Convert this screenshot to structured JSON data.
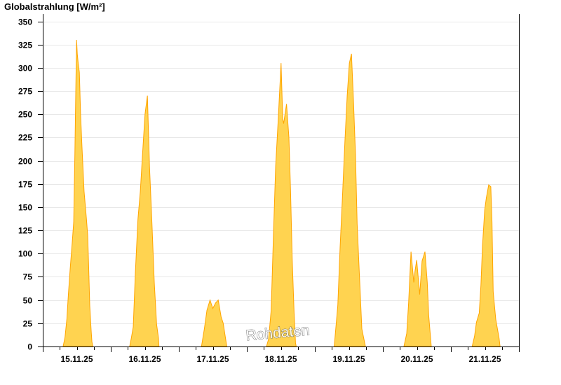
{
  "chart_data": {
    "type": "area",
    "title": "Globalstrahlung [W/m²]",
    "xlabel": "",
    "ylabel": "Globalstrahlung [W/m²]",
    "ylim": [
      0,
      350
    ],
    "yticks": [
      0,
      25,
      50,
      75,
      100,
      125,
      150,
      175,
      200,
      225,
      250,
      275,
      300,
      325,
      350
    ],
    "xrange": [
      "15.11.25 00:00",
      "22.11.25 00:00"
    ],
    "x_tick_interval_hours": 6,
    "grid": "horizontal",
    "colors": {
      "fill": "#ffd350",
      "line": "#ffa500",
      "grid": "#e8e8e8",
      "axis": "#000000"
    },
    "watermark": "Rohdaten",
    "days": [
      {
        "label": "15.11.25",
        "points": [
          [
            "07:10",
            0
          ],
          [
            "07:50",
            10
          ],
          [
            "08:30",
            30
          ],
          [
            "09:00",
            55
          ],
          [
            "09:40",
            84
          ],
          [
            "10:20",
            110
          ],
          [
            "10:55",
            134
          ],
          [
            "11:20",
            209
          ],
          [
            "11:40",
            282
          ],
          [
            "11:55",
            330
          ],
          [
            "12:10",
            315
          ],
          [
            "12:30",
            305
          ],
          [
            "12:55",
            295
          ],
          [
            "13:20",
            250
          ],
          [
            "13:50",
            215
          ],
          [
            "14:35",
            167
          ],
          [
            "15:25",
            137
          ],
          [
            "15:50",
            120
          ],
          [
            "16:10",
            90
          ],
          [
            "16:35",
            44
          ],
          [
            "17:05",
            17
          ],
          [
            "17:20",
            5
          ],
          [
            "17:40",
            0
          ]
        ]
      },
      {
        "label": "16.11.25",
        "points": [
          [
            "06:40",
            0
          ],
          [
            "07:10",
            8
          ],
          [
            "07:55",
            21
          ],
          [
            "08:40",
            79
          ],
          [
            "09:35",
            137
          ],
          [
            "10:25",
            167
          ],
          [
            "11:10",
            205
          ],
          [
            "12:05",
            250
          ],
          [
            "12:55",
            270
          ],
          [
            "13:40",
            194
          ],
          [
            "14:30",
            134
          ],
          [
            "15:20",
            69
          ],
          [
            "16:10",
            24
          ],
          [
            "16:50",
            9
          ],
          [
            "17:00",
            0
          ]
        ]
      },
      {
        "label": "17.11.25",
        "points": [
          [
            "08:00",
            0
          ],
          [
            "09:00",
            19
          ],
          [
            "09:55",
            39
          ],
          [
            "11:00",
            50
          ],
          [
            "12:00",
            41
          ],
          [
            "13:00",
            47
          ],
          [
            "13:55",
            50
          ],
          [
            "14:55",
            32
          ],
          [
            "15:40",
            25
          ],
          [
            "16:55",
            0
          ]
        ]
      },
      {
        "label": "18.11.25",
        "points": [
          [
            "06:55",
            0
          ],
          [
            "07:40",
            8
          ],
          [
            "08:35",
            39
          ],
          [
            "09:25",
            124
          ],
          [
            "10:10",
            194
          ],
          [
            "11:05",
            245
          ],
          [
            "12:05",
            305
          ],
          [
            "12:40",
            245
          ],
          [
            "13:00",
            240
          ],
          [
            "14:00",
            261
          ],
          [
            "14:50",
            225
          ],
          [
            "15:25",
            169
          ],
          [
            "16:00",
            94
          ],
          [
            "16:40",
            36
          ],
          [
            "17:10",
            4
          ],
          [
            "17:25",
            0
          ]
        ]
      },
      {
        "label": "19.11.25",
        "points": [
          [
            "06:50",
            0
          ],
          [
            "08:05",
            44
          ],
          [
            "08:55",
            107
          ],
          [
            "09:40",
            157
          ],
          [
            "10:35",
            220
          ],
          [
            "11:25",
            270
          ],
          [
            "12:10",
            305
          ],
          [
            "12:55",
            315
          ],
          [
            "13:40",
            262
          ],
          [
            "14:20",
            207
          ],
          [
            "14:55",
            132
          ],
          [
            "15:50",
            69
          ],
          [
            "16:35",
            19
          ],
          [
            "17:50",
            0
          ]
        ]
      },
      {
        "label": "20.11.25",
        "points": [
          [
            "07:25",
            0
          ],
          [
            "08:25",
            14
          ],
          [
            "09:05",
            47
          ],
          [
            "09:55",
            102
          ],
          [
            "10:55",
            69
          ],
          [
            "11:20",
            81
          ],
          [
            "11:55",
            93
          ],
          [
            "13:00",
            56
          ],
          [
            "13:50",
            92
          ],
          [
            "14:50",
            102
          ],
          [
            "15:40",
            69
          ],
          [
            "16:10",
            34
          ],
          [
            "17:05",
            0
          ]
        ]
      },
      {
        "label": "21.11.25",
        "points": [
          [
            "07:30",
            0
          ],
          [
            "08:20",
            11
          ],
          [
            "09:00",
            26
          ],
          [
            "10:00",
            36
          ],
          [
            "10:35",
            66
          ],
          [
            "11:10",
            109
          ],
          [
            "11:55",
            147
          ],
          [
            "12:30",
            160
          ],
          [
            "13:20",
            174
          ],
          [
            "14:05",
            172
          ],
          [
            "14:30",
            134
          ],
          [
            "14:55",
            59
          ],
          [
            "15:50",
            29
          ],
          [
            "17:00",
            9
          ],
          [
            "17:20",
            0
          ]
        ]
      }
    ]
  }
}
